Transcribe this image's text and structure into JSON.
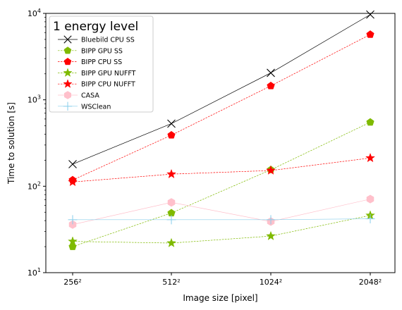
{
  "chart_data": {
    "type": "line",
    "xlabel": "Image size [pixel]",
    "ylabel": "Time to solution [s]",
    "categories": [
      "256²",
      "512²",
      "1024²",
      "2048²"
    ],
    "y_scale": "log",
    "ylim": [
      10,
      10000
    ],
    "y_ticks": [
      {
        "value": 10,
        "base": "10",
        "exp": "1"
      },
      {
        "value": 100,
        "base": "10",
        "exp": "2"
      },
      {
        "value": 1000,
        "base": "10",
        "exp": "3"
      },
      {
        "value": 10000,
        "base": "10",
        "exp": "4"
      }
    ],
    "legend": {
      "title": "1 energy level",
      "position": "top-left"
    },
    "series": [
      {
        "name": "Bluebild CPU SS",
        "values": [
          180,
          530,
          2050,
          9700
        ],
        "color": "#000000",
        "marker": "x"
      },
      {
        "name": "BIPP GPU SS",
        "values": [
          20,
          49,
          155,
          550
        ],
        "color": "#7fba00",
        "marker": "pentagon"
      },
      {
        "name": "BIPP CPU SS",
        "values": [
          118,
          390,
          1450,
          5700
        ],
        "color": "#ff0000",
        "marker": "pentagon"
      },
      {
        "name": "BIPP GPU NUFFT",
        "values": [
          23,
          22,
          26.5,
          46
        ],
        "color": "#7fba00",
        "marker": "star"
      },
      {
        "name": "BIPP CPU NUFFT",
        "values": [
          112,
          138,
          152,
          212
        ],
        "color": "#ff0000",
        "marker": "star"
      },
      {
        "name": "CASA",
        "values": [
          36,
          65,
          39,
          71
        ],
        "color": "#ffc0cb",
        "marker": "hexagon"
      },
      {
        "name": "WSClean",
        "values": [
          41,
          41,
          41,
          42
        ],
        "color": "#87ceeb",
        "marker": "plus"
      }
    ]
  }
}
